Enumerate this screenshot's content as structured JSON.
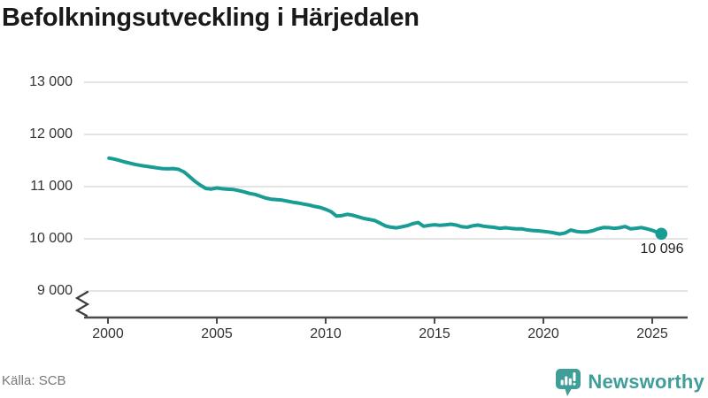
{
  "header": {
    "title": "Befolkningsutveckling i Härjedalen"
  },
  "footer": {
    "source": "Källa: SCB",
    "brand": "Newsworthy",
    "brand_icon": "newsworthy-speech-bubble-bar-chart-icon"
  },
  "colors": {
    "line": "#189c94",
    "dot": "#189c94",
    "grid": "#e0e0e0",
    "axis": "#4b4b4b",
    "title": "#191919",
    "tick_label": "#333333",
    "end_label": "#222222",
    "muted": "#787878",
    "brand": "#3f9e98"
  },
  "chart_data": {
    "type": "line",
    "title": "Befolkningsutveckling i Härjedalen",
    "source": "Källa: SCB",
    "xlabel": "",
    "ylabel": "",
    "grid": "horizontal",
    "legend": "none",
    "axis_break_below": 9000,
    "ylim": [
      9000,
      13000
    ],
    "xlim": [
      1998.9,
      2026.6
    ],
    "y_ticks": [
      {
        "value": 13000,
        "label": "13 000"
      },
      {
        "value": 12000,
        "label": "12 000"
      },
      {
        "value": 11000,
        "label": "11 000"
      },
      {
        "value": 10000,
        "label": "10 000"
      },
      {
        "value": 9000,
        "label": "9 000"
      }
    ],
    "x_ticks": [
      {
        "value": 2000,
        "label": "2000"
      },
      {
        "value": 2005,
        "label": "2005"
      },
      {
        "value": 2010,
        "label": "2010"
      },
      {
        "value": 2015,
        "label": "2015"
      },
      {
        "value": 2020,
        "label": "2020"
      },
      {
        "value": 2025,
        "label": "2025"
      }
    ],
    "end_label": {
      "value": 10096,
      "label": "10 096"
    },
    "series": [
      {
        "name": "Befolkning",
        "points": [
          [
            2000.05,
            11545
          ],
          [
            2000.25,
            11530
          ],
          [
            2000.5,
            11505
          ],
          [
            2000.75,
            11475
          ],
          [
            2001.0,
            11450
          ],
          [
            2001.25,
            11425
          ],
          [
            2001.5,
            11405
          ],
          [
            2001.75,
            11390
          ],
          [
            2002.0,
            11375
          ],
          [
            2002.25,
            11360
          ],
          [
            2002.5,
            11345
          ],
          [
            2002.75,
            11340
          ],
          [
            2003.0,
            11345
          ],
          [
            2003.25,
            11330
          ],
          [
            2003.5,
            11280
          ],
          [
            2003.75,
            11190
          ],
          [
            2004.0,
            11100
          ],
          [
            2004.25,
            11025
          ],
          [
            2004.5,
            10965
          ],
          [
            2004.75,
            10955
          ],
          [
            2005.0,
            10975
          ],
          [
            2005.25,
            10960
          ],
          [
            2005.5,
            10950
          ],
          [
            2005.75,
            10945
          ],
          [
            2006.0,
            10925
          ],
          [
            2006.25,
            10900
          ],
          [
            2006.5,
            10870
          ],
          [
            2006.75,
            10850
          ],
          [
            2007.0,
            10815
          ],
          [
            2007.25,
            10780
          ],
          [
            2007.5,
            10760
          ],
          [
            2007.75,
            10750
          ],
          [
            2008.0,
            10740
          ],
          [
            2008.25,
            10720
          ],
          [
            2008.5,
            10700
          ],
          [
            2008.75,
            10685
          ],
          [
            2009.0,
            10665
          ],
          [
            2009.25,
            10645
          ],
          [
            2009.5,
            10620
          ],
          [
            2009.75,
            10600
          ],
          [
            2010.0,
            10565
          ],
          [
            2010.25,
            10520
          ],
          [
            2010.5,
            10435
          ],
          [
            2010.75,
            10445
          ],
          [
            2011.0,
            10470
          ],
          [
            2011.25,
            10450
          ],
          [
            2011.5,
            10420
          ],
          [
            2011.75,
            10390
          ],
          [
            2012.0,
            10372
          ],
          [
            2012.25,
            10350
          ],
          [
            2012.5,
            10300
          ],
          [
            2012.75,
            10245
          ],
          [
            2013.0,
            10222
          ],
          [
            2013.25,
            10210
          ],
          [
            2013.5,
            10230
          ],
          [
            2013.75,
            10252
          ],
          [
            2014.0,
            10290
          ],
          [
            2014.25,
            10312
          ],
          [
            2014.5,
            10240
          ],
          [
            2014.75,
            10258
          ],
          [
            2015.0,
            10270
          ],
          [
            2015.25,
            10258
          ],
          [
            2015.5,
            10268
          ],
          [
            2015.75,
            10280
          ],
          [
            2016.0,
            10262
          ],
          [
            2016.25,
            10230
          ],
          [
            2016.5,
            10222
          ],
          [
            2016.75,
            10250
          ],
          [
            2017.0,
            10262
          ],
          [
            2017.25,
            10240
          ],
          [
            2017.5,
            10228
          ],
          [
            2017.75,
            10218
          ],
          [
            2018.0,
            10200
          ],
          [
            2018.25,
            10212
          ],
          [
            2018.5,
            10200
          ],
          [
            2018.75,
            10192
          ],
          [
            2019.0,
            10192
          ],
          [
            2019.25,
            10172
          ],
          [
            2019.5,
            10160
          ],
          [
            2019.75,
            10152
          ],
          [
            2020.0,
            10142
          ],
          [
            2020.25,
            10130
          ],
          [
            2020.5,
            10112
          ],
          [
            2020.75,
            10092
          ],
          [
            2021.0,
            10112
          ],
          [
            2021.25,
            10168
          ],
          [
            2021.5,
            10142
          ],
          [
            2021.75,
            10130
          ],
          [
            2022.0,
            10132
          ],
          [
            2022.25,
            10152
          ],
          [
            2022.5,
            10190
          ],
          [
            2022.75,
            10215
          ],
          [
            2023.0,
            10214
          ],
          [
            2023.25,
            10200
          ],
          [
            2023.5,
            10212
          ],
          [
            2023.75,
            10235
          ],
          [
            2024.0,
            10192
          ],
          [
            2024.25,
            10202
          ],
          [
            2024.5,
            10216
          ],
          [
            2024.75,
            10192
          ],
          [
            2025.0,
            10162
          ],
          [
            2025.25,
            10120
          ],
          [
            2025.42,
            10096
          ]
        ]
      }
    ]
  }
}
